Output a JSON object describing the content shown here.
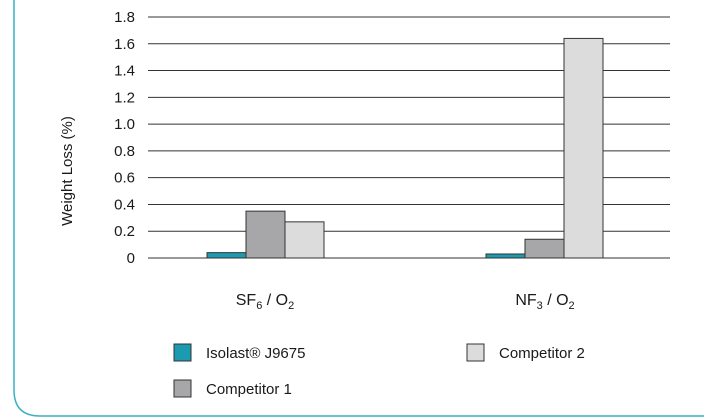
{
  "chart_data": {
    "type": "bar",
    "ylabel": "Weight Loss (%)",
    "ylim": [
      0,
      1.8
    ],
    "yticks": [
      "0",
      "0.2",
      "0.4",
      "0.6",
      "0.8",
      "1.0",
      "1.2",
      "1.4",
      "1.6",
      "1.8"
    ],
    "grid": true,
    "categories": [
      {
        "main1": "SF",
        "sub1": "6",
        "mid": " / O",
        "sub2": "2"
      },
      {
        "main1": "NF",
        "sub1": "3",
        "mid": " / O",
        "sub2": "2"
      }
    ],
    "series": [
      {
        "name": "Isolast® J9675",
        "values": [
          0.04,
          0.03
        ],
        "color": "#1a9bb0"
      },
      {
        "name": "Competitor 1",
        "values": [
          0.35,
          0.14
        ],
        "color": "#a7a7a9"
      },
      {
        "name": "Competitor 2",
        "values": [
          0.27,
          1.64
        ],
        "color": "#dcdcdc"
      }
    ],
    "legend_position": "bottom",
    "accent_color": "#3ab0c0"
  }
}
